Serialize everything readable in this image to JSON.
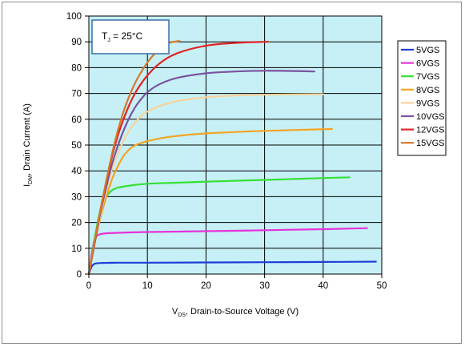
{
  "chart_data": {
    "type": "line",
    "title": "",
    "xlabel": "V_DS, Drain-to-Source Voltage (V)",
    "ylabel": "I_DM, Drain Current (A)",
    "xlim": [
      0,
      50
    ],
    "ylim": [
      0,
      100
    ],
    "xticks": [
      0,
      10,
      20,
      30,
      40,
      50
    ],
    "yticks": [
      0,
      10,
      20,
      30,
      40,
      50,
      60,
      70,
      80,
      90,
      100
    ],
    "grid": true,
    "legend_position": "right",
    "annotation": "T_J = 25°C",
    "colors": {
      "plot_background": "#c6f0f6",
      "grid": "#000000",
      "annotation_border": "#3b6fa8"
    },
    "series": [
      {
        "name": "5VGS",
        "color": "#1f3ed8",
        "x": [
          0,
          0.5,
          1,
          1.5,
          2,
          3,
          5,
          10,
          20,
          30,
          40,
          49
        ],
        "y": [
          0,
          3.0,
          4.0,
          4.2,
          4.3,
          4.35,
          4.4,
          4.4,
          4.5,
          4.6,
          4.7,
          4.8
        ]
      },
      {
        "name": "6VGS",
        "color": "#e632d8",
        "x": [
          0,
          0.5,
          1,
          1.5,
          2,
          3,
          5,
          10,
          20,
          30,
          40,
          47.5
        ],
        "y": [
          0,
          8,
          13.5,
          15,
          15.5,
          15.8,
          16,
          16.3,
          16.6,
          17,
          17.4,
          17.8
        ]
      },
      {
        "name": "7VGS",
        "color": "#35e035",
        "x": [
          0,
          0.5,
          1,
          1.5,
          2,
          3,
          4,
          5,
          7,
          10,
          15,
          20,
          30,
          40,
          44.5
        ],
        "y": [
          0,
          7,
          14,
          20,
          25,
          30,
          32.5,
          33.5,
          34.3,
          35,
          35.4,
          35.8,
          36.5,
          37.2,
          37.5
        ]
      },
      {
        "name": "8VGS",
        "color": "#f4a323",
        "x": [
          0,
          1,
          2,
          3,
          4,
          5,
          6,
          7,
          8,
          10,
          12,
          15,
          20,
          30,
          41.5
        ],
        "y": [
          0,
          12,
          22,
          30,
          37,
          42,
          46,
          48.5,
          50,
          51.5,
          52.5,
          53.5,
          54.5,
          55.5,
          56.2
        ]
      },
      {
        "name": "9VGS",
        "color": "#f8d39a",
        "x": [
          0,
          1,
          2,
          3,
          4,
          5,
          6,
          7,
          8,
          9,
          10,
          12,
          15,
          20,
          25,
          30,
          40
        ],
        "y": [
          0,
          12,
          23,
          33,
          41,
          47,
          52,
          56,
          59,
          61.5,
          63,
          65,
          67,
          68.5,
          69.2,
          69.5,
          69.7
        ]
      },
      {
        "name": "10VGS",
        "color": "#7a539e",
        "x": [
          0,
          1,
          2,
          3,
          4,
          5,
          6,
          7,
          8,
          9,
          10,
          12,
          15,
          20,
          25,
          30,
          35,
          38.5
        ],
        "y": [
          0,
          12,
          24,
          34,
          43,
          50,
          56,
          61,
          65,
          68,
          70.5,
          73.5,
          76,
          77.8,
          78.5,
          78.8,
          78.7,
          78.5
        ]
      },
      {
        "name": "12VGS",
        "color": "#e02424",
        "x": [
          0,
          1,
          2,
          3,
          4,
          5,
          6,
          7,
          8,
          9,
          10,
          12,
          15,
          20,
          25,
          30,
          30.5
        ],
        "y": [
          0,
          12.5,
          25,
          36,
          46,
          54,
          60.5,
          66,
          70.5,
          74,
          77,
          81.5,
          85.5,
          88.5,
          89.6,
          90,
          90
        ]
      },
      {
        "name": "15VGS",
        "color": "#d5782a",
        "x": [
          0,
          1,
          2,
          3,
          4,
          5,
          6,
          7,
          8,
          9,
          10,
          11,
          12,
          13,
          14,
          15.5
        ],
        "y": [
          0,
          13,
          25,
          36.5,
          47,
          56,
          63.5,
          69.5,
          74.5,
          78.5,
          82,
          84.8,
          87,
          88.7,
          89.8,
          90.3
        ]
      }
    ]
  }
}
